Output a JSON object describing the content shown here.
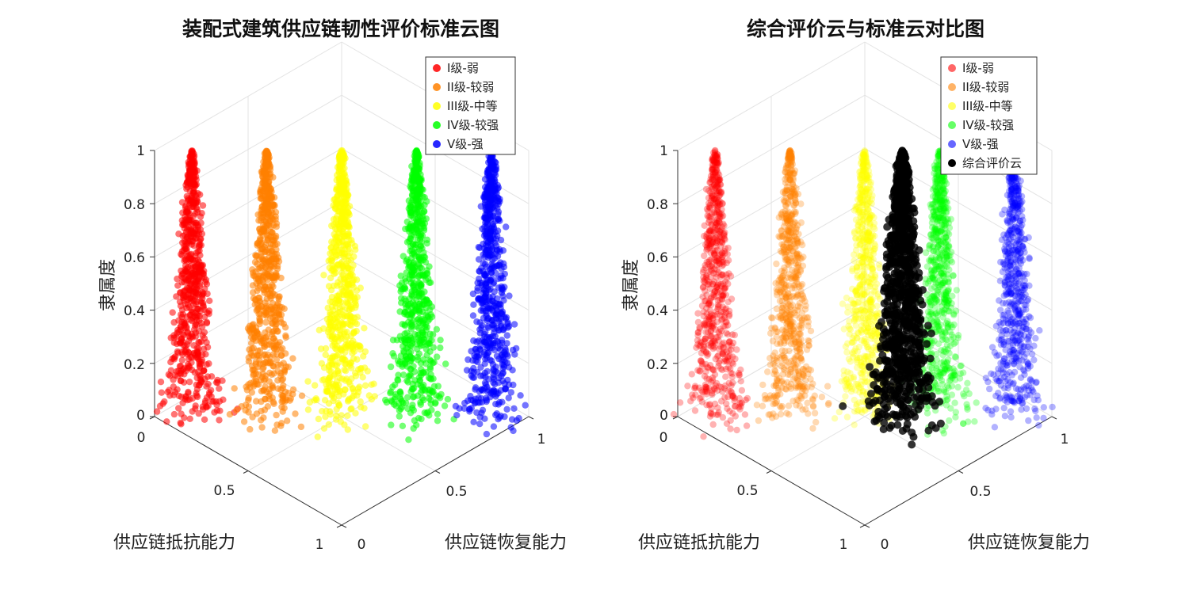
{
  "chart_data": [
    {
      "type": "scatter",
      "title": "装配式建筑供应链韧性评价标准云图",
      "xlabel": "供应链抵抗能力",
      "ylabel": "供应链恢复能力",
      "zlabel": "隶属度",
      "xlim": [
        0,
        1
      ],
      "ylim": [
        0,
        1
      ],
      "zlim": [
        0,
        1
      ],
      "x_ticks": [
        "0",
        "0.5",
        "1"
      ],
      "y_ticks": [
        "0",
        "0.5",
        "1"
      ],
      "z_ticks": [
        "0",
        "0.2",
        "0.4",
        "0.6",
        "0.8",
        "1"
      ],
      "legend_position": "top-right",
      "series": [
        {
          "name": "I级-弱",
          "color": "#ff0000",
          "center": [
            0.1,
            0.1
          ],
          "spread": 0.033,
          "opacity": 0.55
        },
        {
          "name": "II级-较弱",
          "color": "#ff8000",
          "center": [
            0.3,
            0.3
          ],
          "spread": 0.033,
          "opacity": 0.55
        },
        {
          "name": "III级-中等",
          "color": "#ffff00",
          "center": [
            0.5,
            0.5
          ],
          "spread": 0.033,
          "opacity": 0.55
        },
        {
          "name": "IV级-较强",
          "color": "#00ff00",
          "center": [
            0.7,
            0.7
          ],
          "spread": 0.033,
          "opacity": 0.55
        },
        {
          "name": "V级-强",
          "color": "#0000ff",
          "center": [
            0.9,
            0.9
          ],
          "spread": 0.033,
          "opacity": 0.55
        }
      ]
    },
    {
      "type": "scatter",
      "title": "综合评价云与标准云对比图",
      "xlabel": "供应链抵抗能力",
      "ylabel": "供应链恢复能力",
      "zlabel": "隶属度",
      "xlim": [
        0,
        1
      ],
      "ylim": [
        0,
        1
      ],
      "zlim": [
        0,
        1
      ],
      "x_ticks": [
        "0",
        "0.5",
        "1"
      ],
      "y_ticks": [
        "0",
        "0.5",
        "1"
      ],
      "z_ticks": [
        "0",
        "0.2",
        "0.4",
        "0.6",
        "0.8",
        "1"
      ],
      "legend_position": "top-right",
      "series": [
        {
          "name": "I级-弱",
          "color": "#ff0000",
          "center": [
            0.1,
            0.1
          ],
          "spread": 0.033,
          "opacity": 0.3
        },
        {
          "name": "II级-较弱",
          "color": "#ff8000",
          "center": [
            0.3,
            0.3
          ],
          "spread": 0.033,
          "opacity": 0.3
        },
        {
          "name": "III级-中等",
          "color": "#ffff00",
          "center": [
            0.5,
            0.5
          ],
          "spread": 0.033,
          "opacity": 0.3
        },
        {
          "name": "IV级-较强",
          "color": "#00ff00",
          "center": [
            0.7,
            0.7
          ],
          "spread": 0.033,
          "opacity": 0.3
        },
        {
          "name": "V级-强",
          "color": "#0000ff",
          "center": [
            0.9,
            0.9
          ],
          "spread": 0.033,
          "opacity": 0.3
        },
        {
          "name": "综合评价云",
          "color": "#000000",
          "center": [
            0.6,
            0.6
          ],
          "spread": 0.04,
          "opacity": 0.8
        }
      ]
    }
  ]
}
